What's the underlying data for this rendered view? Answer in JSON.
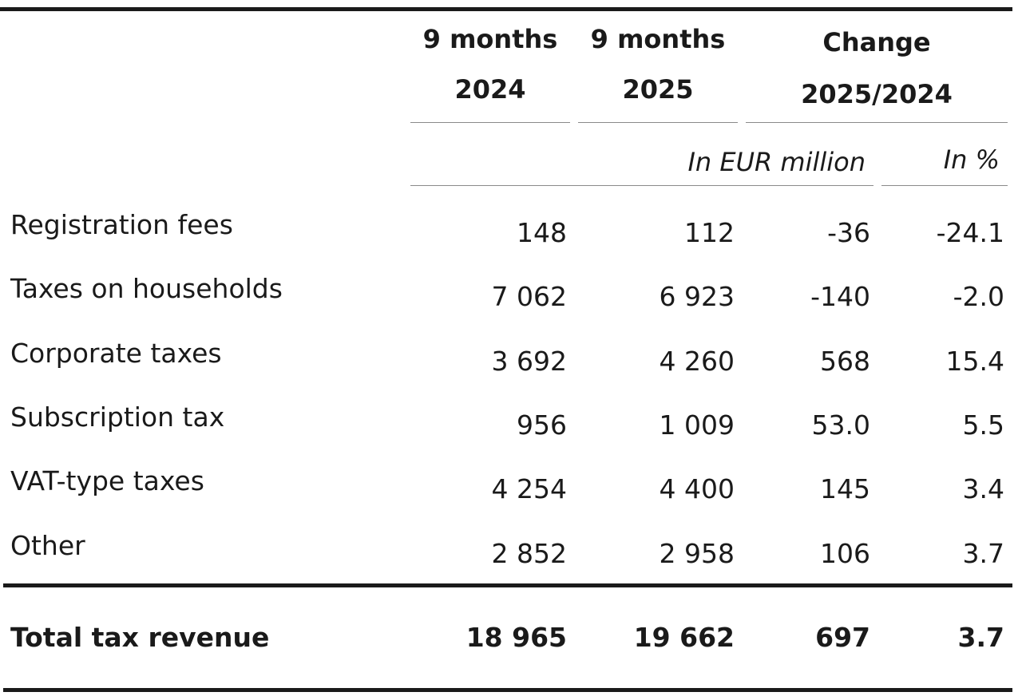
{
  "header": {
    "col1_line1": "9 months",
    "col1_line2": "2024",
    "col2_line1": "9 months",
    "col2_line2": "2025",
    "col3_line1": "Change",
    "col3_line2": "2025/2024",
    "unit_million": "In EUR million",
    "unit_percent": "In %"
  },
  "rows": [
    {
      "label": "Registration fees",
      "v2024": "148",
      "v2025": "112",
      "change": "-36",
      "pct": "-24.1"
    },
    {
      "label": "Taxes on households",
      "v2024": "7 062",
      "v2025": "6 923",
      "change": "-140",
      "pct": "-2.0"
    },
    {
      "label": "Corporate taxes",
      "v2024": "3 692",
      "v2025": "4 260",
      "change": "568",
      "pct": "15.4"
    },
    {
      "label": "Subscription tax",
      "v2024": "956",
      "v2025": "1 009",
      "change": "53.0",
      "pct": "5.5"
    },
    {
      "label": "VAT-type taxes",
      "v2024": "4 254",
      "v2025": "4 400",
      "change": "145",
      "pct": "3.4"
    },
    {
      "label": "Other",
      "v2024": "2 852",
      "v2025": "2 958",
      "change": "106",
      "pct": "3.7"
    }
  ],
  "total": {
    "label": "Total tax revenue",
    "v2024": "18 965",
    "v2025": "19 662",
    "change": "697",
    "pct": "3.7"
  }
}
